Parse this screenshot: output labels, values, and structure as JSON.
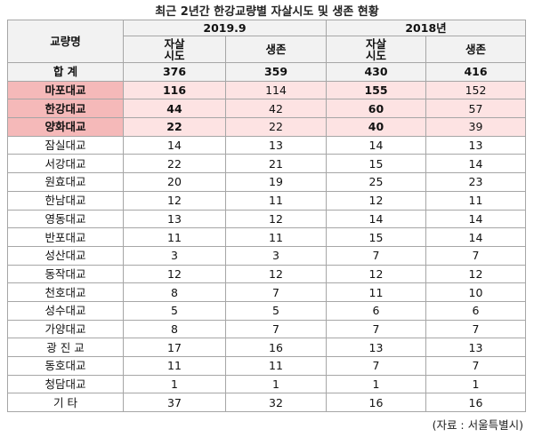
{
  "title": "최근 2년간 한강교량별 자살시도 및 생존 현황",
  "table": {
    "header": {
      "label": "교량명",
      "groups": [
        "2019.9",
        "2018년"
      ],
      "columns": [
        "자살\n시도",
        "생존",
        "자살\n시도",
        "생존"
      ]
    },
    "rows": [
      [
        "합 계",
        376,
        359,
        430,
        416
      ],
      [
        "마포대교",
        116,
        114,
        155,
        152
      ],
      [
        "한강대교",
        44,
        42,
        60,
        57
      ],
      [
        "양화대교",
        22,
        22,
        40,
        39
      ],
      [
        "잠실대교",
        14,
        13,
        14,
        13
      ],
      [
        "서강대교",
        22,
        21,
        15,
        14
      ],
      [
        "원효대교",
        20,
        19,
        25,
        23
      ],
      [
        "한남대교",
        12,
        11,
        12,
        11
      ],
      [
        "영동대교",
        13,
        12,
        14,
        14
      ],
      [
        "반포대교",
        11,
        11,
        15,
        14
      ],
      [
        "성산대교",
        3,
        3,
        7,
        7
      ],
      [
        "동작대교",
        12,
        12,
        12,
        12
      ],
      [
        "천호대교",
        8,
        7,
        11,
        10
      ],
      [
        "성수대교",
        5,
        5,
        6,
        6
      ],
      [
        "가양대교",
        8,
        7,
        7,
        7
      ],
      [
        "광 진 교",
        17,
        16,
        13,
        13
      ],
      [
        "동호대교",
        11,
        11,
        7,
        7
      ],
      [
        "청담대교",
        1,
        1,
        1,
        1
      ],
      [
        "기 타",
        37,
        32,
        16,
        16
      ]
    ]
  },
  "source": "(자료 : 서울특별시)"
}
